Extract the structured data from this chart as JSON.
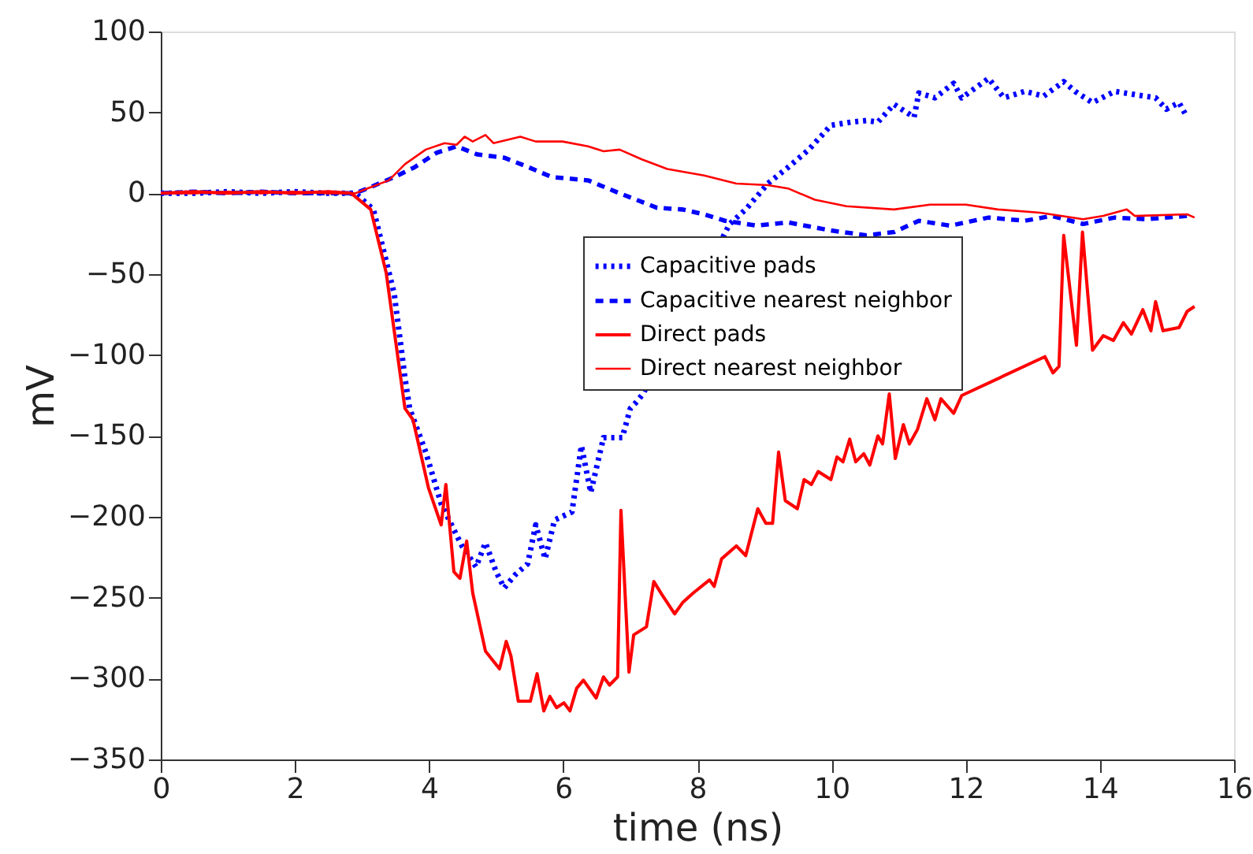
{
  "chart_data": {
    "type": "line",
    "xlabel": "time (ns)",
    "ylabel": "mV",
    "xlim": [
      0,
      16
    ],
    "ylim": [
      -350,
      100
    ],
    "xticks": [
      0,
      2,
      4,
      6,
      8,
      10,
      12,
      14,
      16
    ],
    "yticks": [
      -350,
      -300,
      -250,
      -200,
      -150,
      -100,
      -50,
      0,
      50,
      100
    ],
    "grid": false,
    "legend": "right",
    "marker": "none",
    "series": [
      {
        "name": "Capacitive pads",
        "color": "#0000ff",
        "line_style": "dotted",
        "x": [
          0,
          0.5,
          1,
          1.5,
          2,
          2.5,
          2.9,
          3.17,
          3.48,
          3.64,
          3.71,
          3.95,
          4.18,
          4.37,
          4.49,
          4.7,
          4.84,
          5.0,
          5.12,
          5.28,
          5.47,
          5.59,
          5.73,
          5.87,
          6.13,
          6.27,
          6.41,
          6.6,
          6.88,
          7.0,
          7.07,
          7.19,
          8.48,
          8.72,
          9.05,
          9.35,
          9.66,
          9.99,
          10.29,
          10.52,
          10.69,
          10.93,
          11.23,
          11.3,
          11.54,
          11.82,
          11.94,
          12.34,
          12.57,
          12.88,
          13.16,
          13.46,
          13.63,
          13.89,
          14.22,
          14.52,
          14.83,
          14.99,
          15.18,
          15.3
        ],
        "values": [
          0,
          0,
          1,
          0,
          1,
          0,
          0,
          -10,
          -62,
          -114,
          -133,
          -160,
          -192,
          -208,
          -218,
          -231,
          -216,
          -234,
          -244,
          -236,
          -229,
          -205,
          -226,
          -202,
          -197,
          -156,
          -185,
          -151,
          -151,
          -133,
          -130,
          -124,
          -19,
          -10,
          6,
          16,
          27,
          42,
          44,
          45,
          44,
          55,
          47,
          62,
          59,
          68,
          59,
          71,
          59,
          63,
          60,
          69,
          63,
          56,
          63,
          61,
          59,
          52,
          56,
          47
        ]
      },
      {
        "name": "Capacitive nearest neighbor",
        "color": "#0000ff",
        "line_style": "dashed",
        "x": [
          0,
          0.5,
          1,
          1.5,
          2,
          2.5,
          2.9,
          3.08,
          3.48,
          3.78,
          4.11,
          4.41,
          4.72,
          5.12,
          5.43,
          5.83,
          6.37,
          6.84,
          7.4,
          7.78,
          8.1,
          8.41,
          8.88,
          9.35,
          9.99,
          10.52,
          10.93,
          11.3,
          11.77,
          12.34,
          12.88,
          13.28,
          13.75,
          14.22,
          14.68,
          15.3
        ],
        "values": [
          0,
          1,
          0,
          1,
          0,
          0,
          0,
          3,
          10,
          16,
          25,
          29,
          24,
          22,
          17,
          10,
          8,
          0,
          -9,
          -10,
          -13,
          -17,
          -20,
          -18,
          -23,
          -26,
          -24,
          -17,
          -20,
          -15,
          -17,
          -14,
          -19,
          -15,
          -16,
          -14
        ]
      },
      {
        "name": "Direct pads",
        "color": "#ff0000",
        "line_style": "solid",
        "x": [
          0,
          0.5,
          1,
          1.5,
          2,
          2.5,
          2.84,
          3.13,
          3.36,
          3.64,
          3.76,
          3.99,
          4.18,
          4.25,
          4.37,
          4.46,
          4.56,
          4.65,
          4.84,
          5.05,
          5.15,
          5.22,
          5.33,
          5.51,
          5.61,
          5.71,
          5.8,
          5.9,
          6.01,
          6.1,
          6.2,
          6.3,
          6.49,
          6.6,
          6.69,
          6.81,
          6.86,
          6.98,
          7.05,
          7.24,
          7.35,
          7.47,
          7.66,
          7.78,
          7.94,
          8.18,
          8.25,
          8.36,
          8.58,
          8.72,
          8.9,
          9.02,
          9.12,
          9.21,
          9.31,
          9.49,
          9.59,
          9.7,
          9.8,
          9.99,
          10.08,
          10.17,
          10.27,
          10.36,
          10.48,
          10.57,
          10.69,
          10.76,
          10.86,
          10.95,
          11.07,
          11.16,
          11.28,
          11.42,
          11.54,
          11.63,
          11.82,
          11.94,
          13.18,
          13.3,
          13.39,
          13.46,
          13.65,
          13.74,
          13.89,
          14.05,
          14.2,
          14.35,
          14.47,
          14.64,
          14.76,
          14.83,
          14.94,
          15.18,
          15.3,
          15.41
        ],
        "values": [
          0,
          1,
          0,
          1,
          0,
          1,
          0,
          -10,
          -49,
          -133,
          -140,
          -182,
          -205,
          -180,
          -234,
          -238,
          -215,
          -247,
          -283,
          -294,
          -277,
          -286,
          -314,
          -314,
          -297,
          -320,
          -311,
          -318,
          -315,
          -320,
          -306,
          -301,
          -312,
          -299,
          -304,
          -299,
          -196,
          -296,
          -273,
          -268,
          -240,
          -248,
          -260,
          -253,
          -247,
          -239,
          -243,
          -226,
          -218,
          -224,
          -195,
          -204,
          -204,
          -160,
          -190,
          -195,
          -177,
          -180,
          -172,
          -177,
          -163,
          -166,
          -152,
          -166,
          -161,
          -168,
          -150,
          -155,
          -124,
          -164,
          -143,
          -155,
          -146,
          -127,
          -140,
          -127,
          -136,
          -125,
          -101,
          -111,
          -107,
          -26,
          -94,
          -24,
          -97,
          -88,
          -91,
          -80,
          -87,
          -72,
          -85,
          -67,
          -85,
          -83,
          -73,
          -70
        ]
      },
      {
        "name": "Direct nearest neighbor",
        "color": "#ff0000",
        "line_style": "solid",
        "x": [
          0,
          0.5,
          1,
          1.5,
          2,
          2.5,
          2.9,
          3.08,
          3.4,
          3.64,
          3.95,
          4.23,
          4.41,
          4.53,
          4.65,
          4.84,
          4.96,
          5.36,
          5.59,
          5.99,
          6.37,
          6.6,
          6.84,
          7.17,
          7.55,
          8.1,
          8.58,
          9.05,
          9.35,
          9.75,
          10.22,
          10.93,
          11.47,
          12.0,
          12.48,
          13.11,
          13.75,
          14.05,
          14.4,
          14.52,
          15.3,
          15.41
        ],
        "values": [
          0,
          0,
          1,
          0,
          1,
          0,
          0,
          3,
          8,
          18,
          27,
          31,
          30,
          35,
          32,
          36,
          31,
          35,
          32,
          32,
          29,
          26,
          27,
          21,
          15,
          11,
          6,
          5,
          3,
          -4,
          -8,
          -10,
          -7,
          -7,
          -10,
          -12,
          -16,
          -14,
          -10,
          -14,
          -13,
          -15
        ]
      }
    ]
  }
}
